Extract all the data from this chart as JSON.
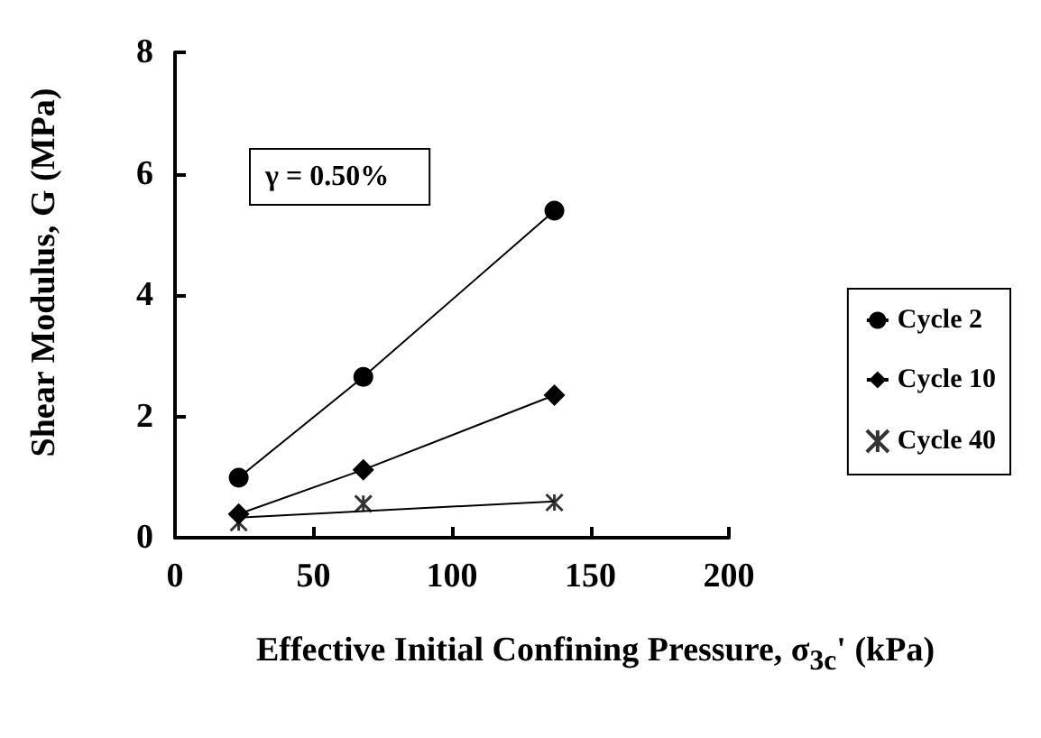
{
  "chart_data": {
    "type": "line",
    "xlabel": "Effective Initial Confining Pressure, σ$_{3c}$' (kPa)",
    "ylabel": "Shear Modulus, G (MPa)",
    "annotations": [
      "γ = 0.50%"
    ],
    "x": [
      23,
      68,
      137
    ],
    "series": [
      {
        "name": "Cycle 2",
        "color": "#000000",
        "marker": "circle",
        "values": [
          0.99,
          2.65,
          5.39
        ]
      },
      {
        "name": "Cycle 10",
        "color": "#000000",
        "marker": "diamond",
        "values": [
          0.39,
          1.12,
          2.35
        ]
      },
      {
        "name": "Cycle 40",
        "type": "scatter",
        "color": "#000000",
        "marker": "cross",
        "values": [
          0.25,
          0.56,
          0.58
        ]
      },
      {
        "type": "line",
        "color": "#000000",
        "marker": "none",
        "x": [
          23,
          137
        ],
        "values": [
          0.33,
          0.6
        ]
      }
    ],
    "xlim": [
      0,
      200
    ],
    "xticks": [
      0,
      50,
      100,
      150,
      200
    ],
    "ylim": [
      0,
      8
    ],
    "yticks": [
      0,
      2,
      4,
      6,
      8
    ],
    "grid": false,
    "legend": "right"
  }
}
